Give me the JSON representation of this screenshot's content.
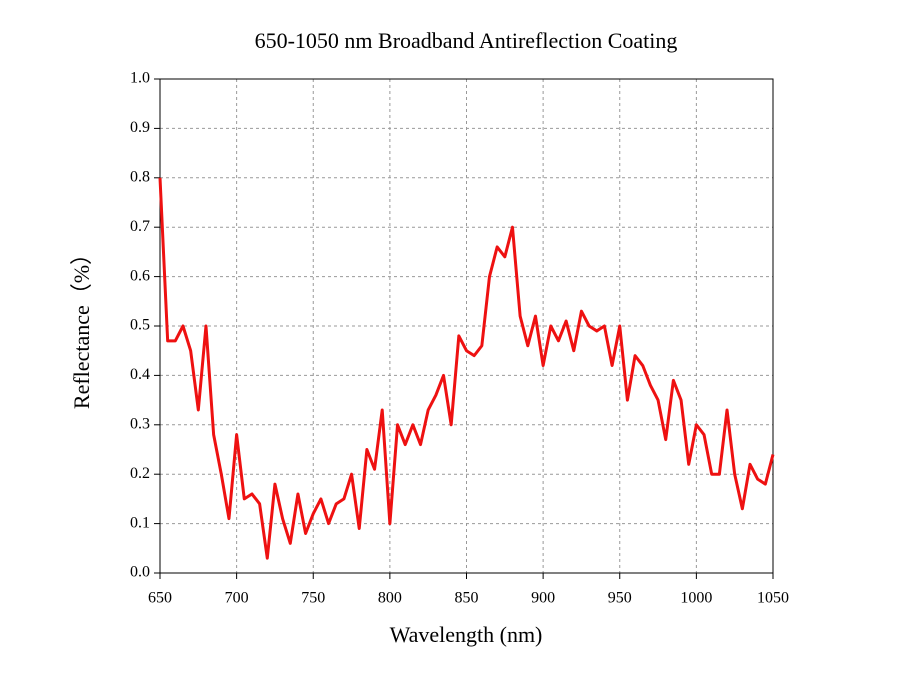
{
  "chart_data": {
    "type": "line",
    "title": "650-1050 nm Broadband Antireflection Coating",
    "x_label": "Wavelength (nm)",
    "y_label": "Reflectance（%）",
    "x": [
      650,
      655,
      660,
      665,
      670,
      675,
      680,
      685,
      690,
      695,
      700,
      705,
      710,
      715,
      720,
      725,
      730,
      735,
      740,
      745,
      750,
      755,
      760,
      765,
      770,
      775,
      780,
      785,
      790,
      795,
      800,
      805,
      810,
      815,
      820,
      825,
      830,
      835,
      840,
      845,
      850,
      855,
      860,
      865,
      870,
      875,
      880,
      885,
      890,
      895,
      900,
      905,
      910,
      915,
      920,
      925,
      930,
      935,
      940,
      945,
      950,
      955,
      960,
      965,
      970,
      975,
      980,
      985,
      990,
      995,
      1000,
      1005,
      1010,
      1015,
      1020,
      1025,
      1030,
      1035,
      1040,
      1045,
      1050
    ],
    "series": [
      {
        "name": "Reflectance",
        "color": "#ee1111",
        "values": [
          0.8,
          0.47,
          0.47,
          0.5,
          0.45,
          0.33,
          0.5,
          0.28,
          0.2,
          0.11,
          0.28,
          0.15,
          0.16,
          0.14,
          0.03,
          0.18,
          0.11,
          0.06,
          0.16,
          0.08,
          0.12,
          0.15,
          0.1,
          0.14,
          0.15,
          0.2,
          0.09,
          0.25,
          0.21,
          0.33,
          0.1,
          0.3,
          0.26,
          0.3,
          0.26,
          0.33,
          0.36,
          0.4,
          0.3,
          0.48,
          0.45,
          0.44,
          0.46,
          0.6,
          0.66,
          0.64,
          0.7,
          0.52,
          0.46,
          0.52,
          0.42,
          0.5,
          0.47,
          0.51,
          0.45,
          0.53,
          0.5,
          0.49,
          0.5,
          0.42,
          0.5,
          0.35,
          0.44,
          0.42,
          0.38,
          0.35,
          0.27,
          0.39,
          0.35,
          0.22,
          0.3,
          0.28,
          0.2,
          0.2,
          0.33,
          0.2,
          0.13,
          0.22,
          0.19,
          0.18,
          0.24
        ]
      }
    ],
    "xlim": [
      650,
      1050
    ],
    "xticks": [
      650,
      700,
      750,
      800,
      850,
      900,
      950,
      1000,
      1050
    ],
    "ylim": [
      0,
      1
    ],
    "yticks": [
      {
        "value": 0,
        "label": "0.0"
      },
      0.1,
      0.2,
      0.3,
      0.4,
      0.5,
      0.6,
      0.7,
      0.8,
      0.9,
      {
        "value": 1,
        "label": "1.0"
      }
    ],
    "grid": true
  }
}
